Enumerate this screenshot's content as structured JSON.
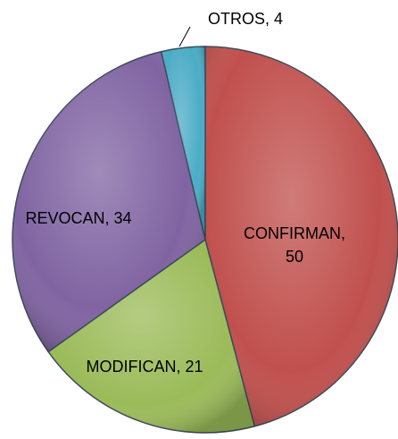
{
  "chart_data": {
    "type": "pie",
    "values": [
      50,
      21,
      34,
      4
    ],
    "value_labels": [
      "CONFIRMAN, 50",
      "MODIFICAN, 21",
      "REVOCAN, 34",
      "OTROS, 4"
    ],
    "colors": [
      "#c0504d",
      "#9bbb59",
      "#8064a2",
      "#4bacc6"
    ]
  }
}
